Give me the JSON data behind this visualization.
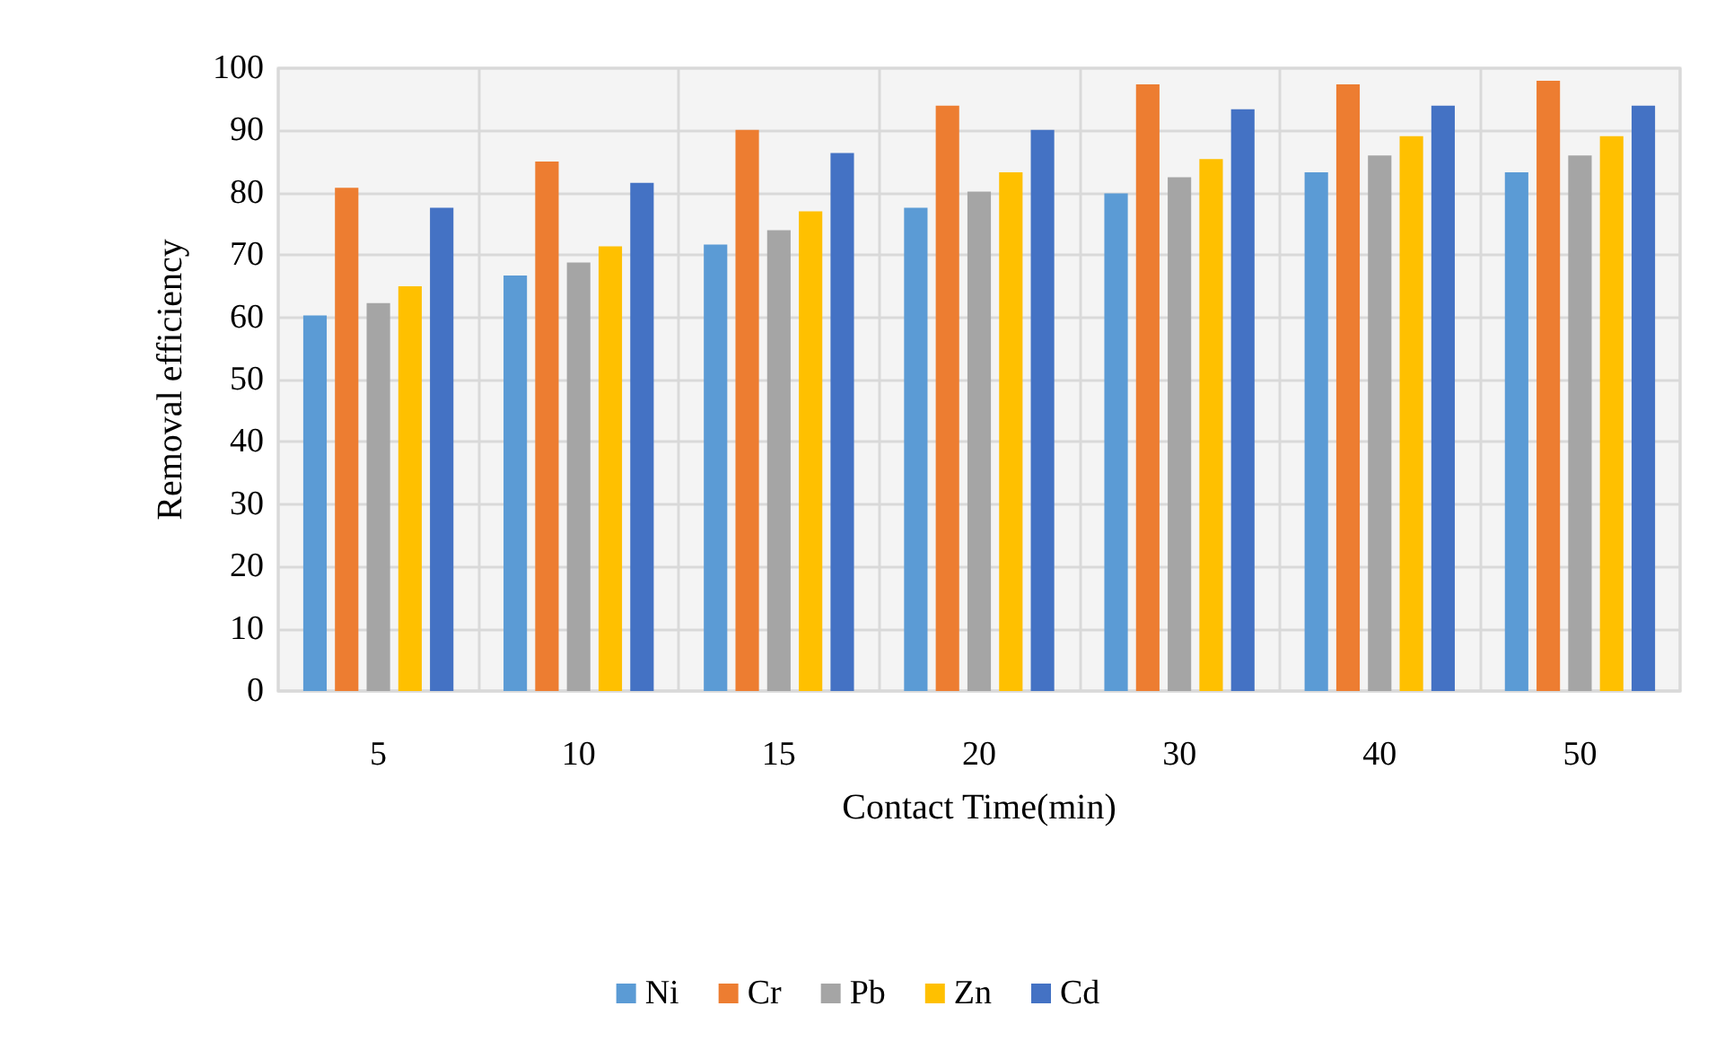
{
  "chart_data": {
    "type": "bar",
    "xlabel": "Contact Time(min)",
    "ylabel": "Removal efficiency",
    "categories": [
      "5",
      "10",
      "15",
      "20",
      "30",
      "40",
      "50"
    ],
    "series": [
      {
        "name": "Ni",
        "color": "#5b9bd5",
        "values": [
          60.3,
          66.7,
          71.7,
          77.6,
          79.9,
          83.3,
          83.3
        ]
      },
      {
        "name": "Cr",
        "color": "#ed7d31",
        "values": [
          80.8,
          85,
          90.1,
          94,
          97.4,
          97.4,
          98
        ]
      },
      {
        "name": "Pb",
        "color": "#a5a5a5",
        "values": [
          62.3,
          68.8,
          74,
          80.2,
          82.5,
          86,
          86
        ]
      },
      {
        "name": "Zn",
        "color": "#ffc000",
        "values": [
          65,
          71.4,
          77,
          83.3,
          85.4,
          89.1,
          89.1
        ]
      },
      {
        "name": "Cd",
        "color": "#4472c4",
        "values": [
          77.6,
          81.6,
          86.4,
          90.1,
          93.4,
          94,
          94
        ]
      }
    ],
    "ylim": [
      0,
      100
    ],
    "yticks": [
      0,
      10,
      20,
      30,
      40,
      50,
      60,
      70,
      80,
      90,
      100
    ],
    "grid": true,
    "legend": "bottom"
  }
}
